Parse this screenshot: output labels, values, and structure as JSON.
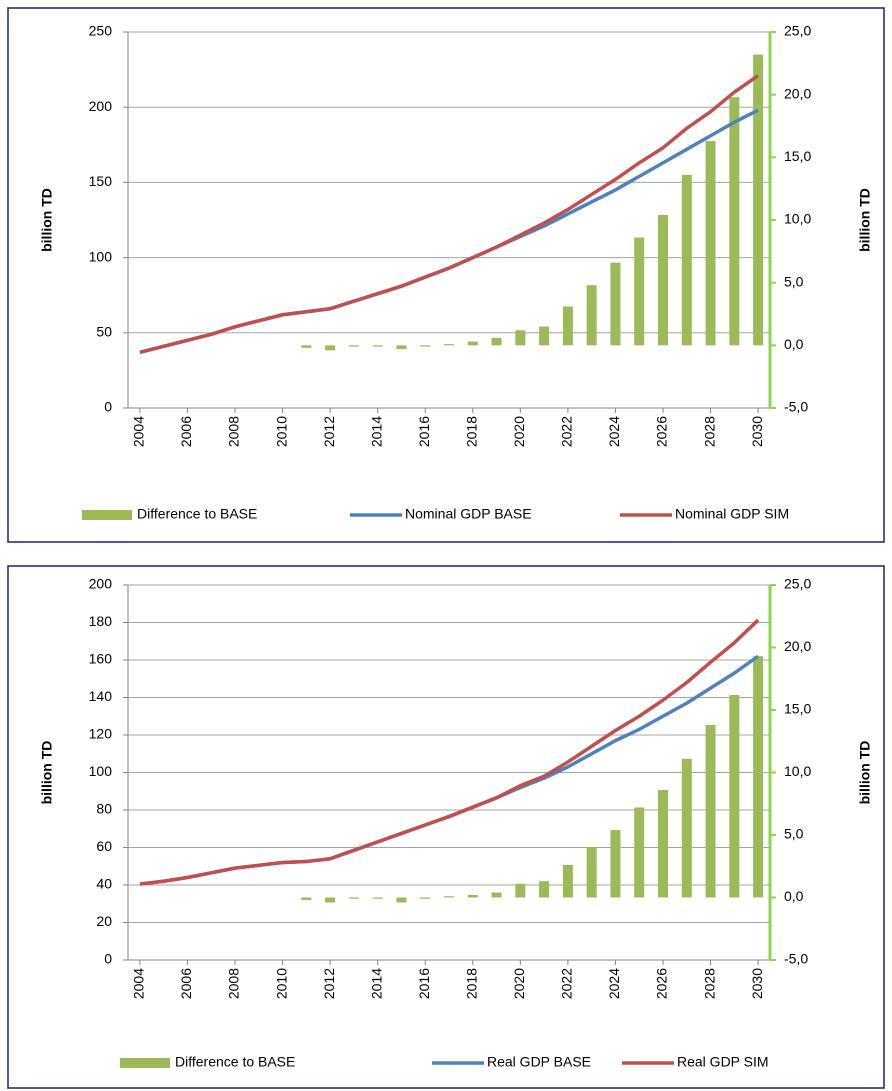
{
  "chart_data": [
    {
      "type": "combo",
      "categories": [
        2004,
        null,
        2006,
        null,
        2008,
        null,
        2010,
        null,
        2012,
        null,
        2014,
        null,
        2016,
        null,
        2018,
        null,
        2020,
        null,
        2022,
        null,
        2024,
        null,
        2026,
        null,
        2028,
        null,
        2030
      ],
      "y_label": "billion TD",
      "y2_label": "billion TD",
      "ylim": [
        0,
        250
      ],
      "yticks": [
        0,
        50,
        100,
        150,
        200,
        250
      ],
      "y2lim": [
        -5,
        25
      ],
      "y2ticks": [
        {
          "value": -5,
          "label": "-5,0"
        },
        {
          "value": 0,
          "label": "0,0"
        },
        {
          "value": 5,
          "label": "5,0"
        },
        {
          "value": 10,
          "label": "10,0"
        },
        {
          "value": 15,
          "label": "15,0"
        },
        {
          "value": 20,
          "label": "20,0"
        },
        {
          "value": 25,
          "label": "25,0"
        }
      ],
      "grid": true,
      "legend": "bottom",
      "y2_axis_color": "#92d050",
      "y2_negative_label_color": "#ff0000",
      "series": [
        {
          "name": "Difference to BASE",
          "type": "bar",
          "axis": "y2",
          "color": "#9bbb59",
          "values": [
            null,
            null,
            null,
            null,
            null,
            null,
            null,
            -0.2,
            -0.4,
            -0.1,
            -0.1,
            -0.3,
            -0.1,
            0.1,
            0.3,
            0.6,
            1.2,
            1.5,
            3.1,
            4.8,
            6.6,
            8.6,
            10.4,
            13.6,
            16.3,
            19.8,
            23.2
          ]
        },
        {
          "name": "Nominal GDP BASE",
          "type": "line",
          "color": "#4f81bd",
          "values": [
            37,
            41,
            45,
            49,
            54,
            58,
            62,
            64,
            66,
            71,
            76,
            81,
            87,
            93,
            100,
            107,
            114,
            121,
            129,
            137,
            145,
            154,
            163,
            172,
            181,
            190,
            198
          ]
        },
        {
          "name": "Nominal GDP SIM",
          "type": "line",
          "color": "#c0504d",
          "values": [
            37,
            41,
            45,
            49,
            54,
            58,
            62,
            64,
            66,
            71,
            76,
            81,
            87,
            93,
            100,
            107,
            115,
            123,
            132,
            142,
            152,
            163,
            173,
            186,
            197,
            210,
            221
          ]
        }
      ]
    },
    {
      "type": "combo",
      "categories": [
        2004,
        null,
        2006,
        null,
        2008,
        null,
        2010,
        null,
        2012,
        null,
        2014,
        null,
        2016,
        null,
        2018,
        null,
        2020,
        null,
        2022,
        null,
        2024,
        null,
        2026,
        null,
        2028,
        null,
        2030
      ],
      "y_label": "billion TD",
      "y2_label": "billion TD",
      "ylim": [
        0,
        200
      ],
      "yticks": [
        0,
        20,
        40,
        60,
        80,
        100,
        120,
        140,
        160,
        180,
        200
      ],
      "y2lim": [
        -5,
        25
      ],
      "y2ticks": [
        {
          "value": -5,
          "label": "-5,0"
        },
        {
          "value": 0,
          "label": "0,0"
        },
        {
          "value": 5,
          "label": "5,0"
        },
        {
          "value": 10,
          "label": "10,0"
        },
        {
          "value": 15,
          "label": "15,0"
        },
        {
          "value": 20,
          "label": "20,0"
        },
        {
          "value": 25,
          "label": "25,0"
        }
      ],
      "grid": true,
      "legend": "bottom",
      "y2_axis_color": "#92d050",
      "y2_negative_label_color": "#ff0000",
      "series": [
        {
          "name": "Difference to BASE",
          "type": "bar",
          "axis": "y2",
          "color": "#9bbb59",
          "values": [
            null,
            null,
            null,
            null,
            null,
            null,
            null,
            -0.2,
            -0.4,
            -0.1,
            -0.1,
            -0.4,
            -0.1,
            0.1,
            0.2,
            0.4,
            1.1,
            1.3,
            2.6,
            4.0,
            5.4,
            7.2,
            8.6,
            11.1,
            13.8,
            16.2,
            19.3
          ]
        },
        {
          "name": "Real GDP BASE",
          "type": "line",
          "color": "#4f81bd",
          "values": [
            40.5,
            42,
            44,
            46.5,
            49,
            50.5,
            52,
            52.5,
            54,
            58.5,
            63,
            67.5,
            72,
            76.5,
            81.5,
            86.5,
            92,
            97,
            103,
            110,
            117,
            123,
            130,
            137,
            145,
            153,
            162
          ]
        },
        {
          "name": "Real GDP SIM",
          "type": "line",
          "color": "#c0504d",
          "values": [
            40.5,
            42,
            44,
            46.5,
            49,
            50.5,
            52,
            52.5,
            54,
            58.5,
            63,
            67.5,
            72,
            76.5,
            81.5,
            86.5,
            93,
            98,
            105.6,
            114,
            122.4,
            130,
            138.6,
            148,
            158.8,
            169.2,
            181.3
          ]
        }
      ]
    }
  ]
}
